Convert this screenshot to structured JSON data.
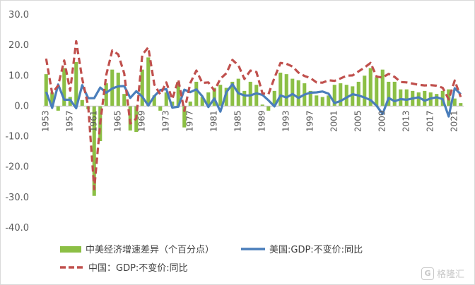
{
  "chart_data": {
    "type": "bar+line",
    "title": "",
    "xlabel": "",
    "ylabel": "",
    "ylim": [
      -40,
      30
    ],
    "yticks": [
      "30.0",
      "20.0",
      "10.0",
      "0.0",
      "-10.0",
      "-20.0",
      "-30.0",
      "-40.0"
    ],
    "ytick_values": [
      30,
      20,
      10,
      0,
      -10,
      -20,
      -30,
      -40
    ],
    "xtick_labels": [
      "1953",
      "1957",
      "1961",
      "1965",
      "1969",
      "1973",
      "1977",
      "1981",
      "1985",
      "1989",
      "1993",
      "1997",
      "2001",
      "2005",
      "2009",
      "2013",
      "2017",
      "2021"
    ],
    "x": [
      1953,
      1954,
      1955,
      1956,
      1957,
      1958,
      1959,
      1960,
      1961,
      1962,
      1963,
      1964,
      1965,
      1966,
      1967,
      1968,
      1969,
      1970,
      1971,
      1972,
      1973,
      1974,
      1975,
      1976,
      1977,
      1978,
      1979,
      1980,
      1981,
      1982,
      1983,
      1984,
      1985,
      1986,
      1987,
      1988,
      1989,
      1990,
      1991,
      1992,
      1993,
      1994,
      1995,
      1996,
      1997,
      1998,
      1999,
      2000,
      2001,
      2002,
      2003,
      2004,
      2005,
      2006,
      2007,
      2008,
      2009,
      2010,
      2011,
      2012,
      2013,
      2014,
      2015,
      2016,
      2017,
      2018,
      2019,
      2020,
      2021,
      2022
    ],
    "series": [
      {
        "name": "中美经济增速差异（个百分点）",
        "kind": "bar",
        "color": "#8cbf45",
        "values": [
          10.5,
          4.5,
          -1.5,
          12.5,
          3.0,
          14.5,
          2.0,
          -1.0,
          -29.5,
          -11.5,
          7.5,
          12.0,
          11.0,
          4.0,
          -8.0,
          -8.5,
          12.0,
          16.0,
          3.5,
          -1.5,
          4.5,
          1.5,
          8.0,
          -7.0,
          1.5,
          8.0,
          3.0,
          4.5,
          6.0,
          7.0,
          6.0,
          8.0,
          9.0,
          5.0,
          8.0,
          7.0,
          0.5,
          -1.5,
          5.0,
          11.0,
          10.5,
          9.0,
          8.5,
          7.5,
          5.0,
          3.5,
          3.0,
          3.5,
          7.0,
          7.5,
          7.0,
          6.5,
          8.0,
          10.0,
          12.5,
          9.5,
          12.0,
          8.0,
          8.0,
          5.5,
          5.5,
          5.0,
          4.5,
          5.0,
          4.5,
          4.0,
          5.0,
          5.5,
          2.5,
          1.0
        ]
      },
      {
        "name": "美国:GDP:不变价:同比",
        "kind": "line",
        "color": "#4a7ebb",
        "values": [
          4.7,
          -0.6,
          7.1,
          2.1,
          2.1,
          -0.7,
          6.9,
          2.6,
          2.6,
          6.1,
          4.4,
          5.8,
          6.5,
          6.6,
          2.7,
          4.9,
          3.1,
          0.2,
          3.3,
          5.3,
          5.6,
          -0.5,
          -0.2,
          5.4,
          4.6,
          5.5,
          3.2,
          -0.3,
          2.5,
          -1.8,
          4.6,
          7.2,
          4.2,
          3.5,
          3.5,
          4.2,
          3.7,
          1.9,
          -0.1,
          3.5,
          2.8,
          4.0,
          2.7,
          3.8,
          4.4,
          4.5,
          4.8,
          4.1,
          1.0,
          1.7,
          2.8,
          3.9,
          3.5,
          2.8,
          2.0,
          0.1,
          -2.6,
          2.7,
          1.6,
          2.3,
          2.1,
          2.5,
          2.9,
          1.8,
          2.5,
          2.9,
          2.3,
          -3.4,
          5.9,
          3.9
        ]
      },
      {
        "name": "中国：GDP:不变价:同比",
        "kind": "line",
        "dashed": true,
        "color": "#c0504d",
        "values": [
          15.6,
          4.2,
          6.8,
          15.0,
          5.1,
          21.3,
          9.0,
          0.0,
          -27.3,
          -5.6,
          10.2,
          18.3,
          17.0,
          10.7,
          -5.7,
          -4.1,
          16.9,
          19.3,
          7.1,
          3.8,
          7.8,
          2.3,
          8.7,
          -1.6,
          7.6,
          11.7,
          7.6,
          7.8,
          5.1,
          9.0,
          10.8,
          15.2,
          13.4,
          8.9,
          11.7,
          11.2,
          4.2,
          3.9,
          9.3,
          14.2,
          13.9,
          13.0,
          11.0,
          9.9,
          9.2,
          7.8,
          7.7,
          8.5,
          8.3,
          9.1,
          10.0,
          10.1,
          11.4,
          12.7,
          14.2,
          9.7,
          9.4,
          10.6,
          9.6,
          7.9,
          7.8,
          7.4,
          7.0,
          6.8,
          6.9,
          6.7,
          6.0,
          2.2,
          8.4,
          3.0
        ]
      }
    ],
    "legend_position": "bottom",
    "grid": false
  },
  "watermark": {
    "logo": "G",
    "text": "格隆汇"
  }
}
